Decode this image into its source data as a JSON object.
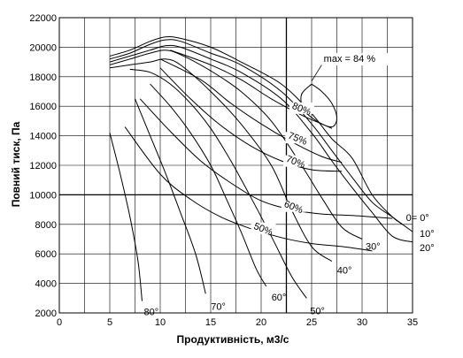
{
  "chart_data": {
    "type": "line",
    "title": "",
    "xlabel": "Продуктивність, м3/с",
    "ylabel": "Повний тиск, Па",
    "xlim": [
      0,
      35
    ],
    "ylim": [
      2000,
      22000
    ],
    "xticks": [
      "0",
      "5",
      "10",
      "15",
      "20",
      "25",
      "30",
      "35"
    ],
    "yticks": [
      "22000",
      "20000",
      "18000",
      "16000",
      "14000",
      "12000",
      "10000",
      "8000",
      "6000",
      "4000",
      "2000"
    ],
    "grid": true,
    "emphasized_gridlines": {
      "x": 22.5,
      "y": 10000
    },
    "blade_angle_curves": [
      {
        "label": "0= 0°",
        "points": [
          [
            5,
            19400
          ],
          [
            7,
            19800
          ],
          [
            9,
            20400
          ],
          [
            10.5,
            20700
          ],
          [
            12,
            20600
          ],
          [
            15,
            20000
          ],
          [
            18,
            19000
          ],
          [
            22,
            17500
          ],
          [
            25,
            15500
          ],
          [
            27,
            13800
          ],
          [
            29,
            12500
          ],
          [
            31,
            10000
          ],
          [
            33,
            8500
          ],
          [
            34,
            8000
          ]
        ]
      },
      {
        "label": "10°",
        "points": [
          [
            5,
            19200
          ],
          [
            7,
            19600
          ],
          [
            9,
            20200
          ],
          [
            10.5,
            20500
          ],
          [
            12,
            20400
          ],
          [
            15,
            19600
          ],
          [
            18,
            18800
          ],
          [
            22,
            17000
          ],
          [
            25,
            14800
          ],
          [
            27,
            13000
          ],
          [
            29,
            11200
          ],
          [
            31,
            9500
          ],
          [
            33,
            8500
          ],
          [
            35,
            7500
          ]
        ]
      },
      {
        "label": "20°",
        "points": [
          [
            5,
            19000
          ],
          [
            7,
            19400
          ],
          [
            9,
            19800
          ],
          [
            10.5,
            20100
          ],
          [
            12,
            20000
          ],
          [
            15,
            19200
          ],
          [
            18,
            18300
          ],
          [
            22,
            16500
          ],
          [
            25,
            14200
          ],
          [
            27,
            12300
          ],
          [
            29,
            10500
          ],
          [
            31,
            8800
          ],
          [
            33,
            7200
          ],
          [
            35,
            6800
          ]
        ]
      },
      {
        "label": "30°",
        "points": [
          [
            5,
            18800
          ],
          [
            7,
            19200
          ],
          [
            9,
            19600
          ],
          [
            10.5,
            19800
          ],
          [
            12,
            19500
          ],
          [
            15,
            18400
          ],
          [
            18,
            17000
          ],
          [
            21,
            15000
          ],
          [
            24,
            12000
          ],
          [
            26,
            9800
          ],
          [
            28,
            7800
          ],
          [
            30,
            7000
          ]
        ]
      },
      {
        "label": "40°",
        "points": [
          [
            5,
            18600
          ],
          [
            7,
            18800
          ],
          [
            9,
            19000
          ],
          [
            10.5,
            19200
          ],
          [
            12,
            18800
          ],
          [
            15,
            17000
          ],
          [
            18,
            14800
          ],
          [
            21,
            12000
          ],
          [
            23,
            9000
          ],
          [
            25,
            6500
          ],
          [
            27,
            5500
          ]
        ]
      },
      {
        "label": "50°",
        "points": [
          [
            7,
            18500
          ],
          [
            9,
            18300
          ],
          [
            11,
            17500
          ],
          [
            13,
            16200
          ],
          [
            15,
            14500
          ],
          [
            17,
            12300
          ],
          [
            19,
            9800
          ],
          [
            21,
            7200
          ],
          [
            23,
            4500
          ],
          [
            24.5,
            3000
          ]
        ]
      },
      {
        "label": "60°",
        "points": [
          [
            9,
            17500
          ],
          [
            11,
            16000
          ],
          [
            13,
            14200
          ],
          [
            15,
            12000
          ],
          [
            16.5,
            9800
          ],
          [
            18,
            7500
          ],
          [
            19.5,
            5000
          ],
          [
            20.5,
            3800
          ]
        ]
      },
      {
        "label": "70°",
        "points": [
          [
            7.5,
            16500
          ],
          [
            9,
            14000
          ],
          [
            10.5,
            11500
          ],
          [
            12,
            8800
          ],
          [
            13.5,
            6000
          ],
          [
            14.5,
            3300
          ]
        ]
      },
      {
        "label": "80°",
        "points": [
          [
            5,
            14200
          ],
          [
            6,
            11500
          ],
          [
            7,
            8500
          ],
          [
            7.8,
            5500
          ],
          [
            8.2,
            2800
          ]
        ]
      }
    ],
    "efficiency_curves": [
      {
        "label": "80%",
        "points": [
          [
            11,
            19800
          ],
          [
            15,
            18800
          ],
          [
            18,
            17800
          ],
          [
            21,
            16500
          ],
          [
            24,
            15400
          ],
          [
            26,
            14800
          ],
          [
            27,
            14500
          ]
        ]
      },
      {
        "label": "75%",
        "points": [
          [
            10,
            19200
          ],
          [
            14,
            17800
          ],
          [
            17,
            16200
          ],
          [
            20,
            14800
          ],
          [
            23,
            13600
          ],
          [
            26,
            12600
          ],
          [
            28,
            12200
          ]
        ]
      },
      {
        "label": "70%",
        "points": [
          [
            10,
            18600
          ],
          [
            13,
            16500
          ],
          [
            16,
            14700
          ],
          [
            19,
            13300
          ],
          [
            22,
            12300
          ],
          [
            25,
            11700
          ],
          [
            28,
            11600
          ]
        ]
      },
      {
        "label": "60%",
        "points": [
          [
            8,
            16500
          ],
          [
            11,
            14300
          ],
          [
            14,
            12300
          ],
          [
            17,
            10800
          ],
          [
            20,
            9600
          ],
          [
            23,
            9000
          ],
          [
            26,
            8700
          ],
          [
            29,
            8600
          ],
          [
            33,
            8400
          ]
        ]
      },
      {
        "label": "50%",
        "points": [
          [
            6.5,
            14600
          ],
          [
            10,
            11400
          ],
          [
            13,
            9700
          ],
          [
            16,
            8500
          ],
          [
            19,
            7700
          ],
          [
            22,
            7100
          ],
          [
            25,
            6700
          ],
          [
            28,
            6500
          ],
          [
            31,
            6200
          ]
        ]
      }
    ],
    "max_contour": {
      "points": [
        [
          25,
          17500
        ],
        [
          24,
          16800
        ],
        [
          24.2,
          15800
        ],
        [
          25.5,
          15000
        ],
        [
          27,
          14600
        ],
        [
          27.5,
          15200
        ],
        [
          27,
          16200
        ],
        [
          26,
          17000
        ],
        [
          25,
          17500
        ]
      ]
    },
    "annotations": {
      "max_label": "max = 84 %"
    },
    "legend": "none"
  }
}
